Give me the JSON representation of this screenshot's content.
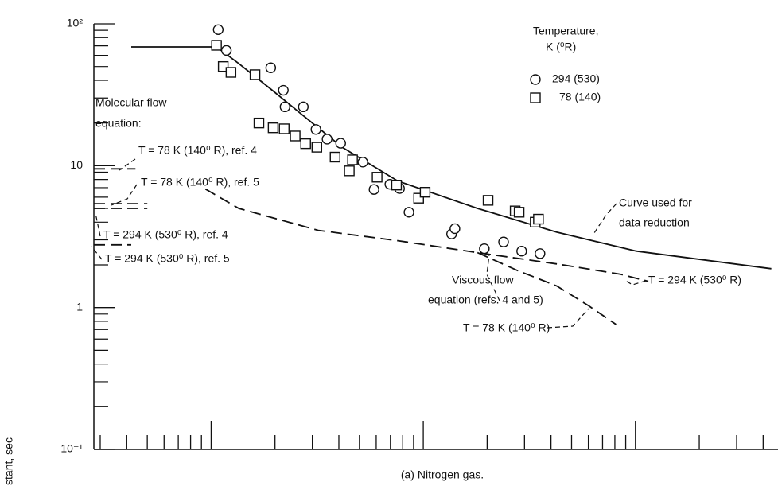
{
  "chart_data": {
    "type": "scatter",
    "ylabel": "stant, sec",
    "caption": "(a) Nitrogen gas.",
    "log_x": true,
    "log_y": true,
    "xlim": [
      0.28,
      470
    ],
    "xticks": [
      0.3,
      0.4,
      0.5,
      0.6,
      0.7,
      0.8,
      0.9,
      1,
      2,
      3,
      4,
      5,
      6,
      7,
      8,
      9,
      10,
      20,
      30,
      40,
      50,
      60,
      70,
      80,
      90,
      100,
      200,
      300,
      400
    ],
    "ylim": [
      0.1,
      100
    ],
    "yticks": [
      {
        "value": 0.1,
        "label": "10⁻¹"
      },
      {
        "value": 1,
        "label": "1"
      },
      {
        "value": 10,
        "label": "10"
      },
      {
        "value": 100,
        "label": "10²"
      }
    ],
    "yminor_ticks": [
      0.2,
      0.3,
      0.4,
      0.5,
      0.6,
      0.7,
      0.8,
      0.9,
      2,
      3,
      4,
      5,
      6,
      7,
      8,
      9,
      20,
      30,
      40,
      50,
      60,
      70,
      80,
      90
    ],
    "legend_title": [
      "Temperature,",
      "K (⁰R)"
    ],
    "series": [
      {
        "name": "294 (530)",
        "marker": "circle",
        "color": "#111111",
        "x": [
          1.08,
          1.18,
          1.91,
          2.19,
          2.23,
          2.72,
          3.12,
          3.52,
          4.08,
          5.19,
          5.86,
          6.96,
          7.73,
          8.56,
          13.6,
          14.1,
          19.4,
          23.9,
          29.1,
          35.5
        ],
        "values": [
          91,
          65,
          49,
          34,
          26,
          26,
          18,
          15.4,
          14.4,
          10.6,
          6.8,
          7.4,
          6.9,
          4.7,
          3.3,
          3.6,
          2.6,
          2.9,
          2.5,
          2.4
        ]
      },
      {
        "name": "78 (140)",
        "marker": "square",
        "color": "#111111",
        "x": [
          1.06,
          1.14,
          1.24,
          1.61,
          1.68,
          1.96,
          2.21,
          2.49,
          2.79,
          3.15,
          3.84,
          4.48,
          4.64,
          6.06,
          7.48,
          9.51,
          10.2,
          20.2,
          27.1,
          28.3,
          33.7,
          34.9
        ],
        "values": [
          70.6,
          50,
          45.5,
          43.8,
          20,
          18.5,
          18.2,
          16.2,
          14.3,
          13.5,
          11.5,
          9.2,
          11,
          8.3,
          7.3,
          5.9,
          6.5,
          5.7,
          4.8,
          4.7,
          4.0,
          4.2
        ]
      }
    ],
    "curves": [
      {
        "dashed": false,
        "x": [
          0.42,
          1.06,
          1.35,
          1.91,
          2.7,
          4.15,
          7.58,
          18,
          42.6,
          101,
          437
        ],
        "values": [
          68.8,
          68.8,
          52.5,
          34.7,
          22.7,
          13.5,
          7.8,
          5.0,
          3.4,
          2.5,
          1.88
        ]
      },
      {
        "dashed": true,
        "x": [
          0.94,
          1.35,
          3.2,
          7.58,
          18,
          42.6,
          85,
          115
        ],
        "values": [
          6.84,
          5.0,
          3.5,
          2.96,
          2.44,
          2.03,
          1.72,
          1.53
        ]
      },
      {
        "dashed": true,
        "x": [
          18,
          27.7,
          42.6,
          60.2,
          81
        ],
        "values": [
          2.44,
          1.83,
          1.42,
          1.03,
          0.76
        ]
      },
      {
        "dashed": true,
        "x": [
          0.28,
          0.44
        ],
        "values": [
          9.5,
          9.5
        ]
      },
      {
        "dashed": true,
        "x": [
          0.28,
          0.5
        ],
        "values": [
          5.4,
          5.4
        ]
      },
      {
        "dashed": true,
        "x": [
          0.28,
          0.5
        ],
        "values": [
          5.0,
          5.0
        ]
      },
      {
        "dashed": true,
        "x": [
          0.28,
          0.42
        ],
        "values": [
          2.77,
          2.77
        ]
      }
    ],
    "annotations": [
      "Molecular flow",
      "equation:",
      "T = 78 K (140⁰ R), ref. 4",
      "T = 78 K (140⁰ R), ref. 5",
      "T = 294 K (530⁰ R), ref. 4",
      "T = 294 K (530⁰ R), ref. 5",
      "Curve used for",
      "data reduction",
      "Viscous flow",
      "equation (refs. 4 and 5)",
      "T = 294 K (530⁰ R)",
      "T = 78 K (140⁰ R)"
    ]
  }
}
